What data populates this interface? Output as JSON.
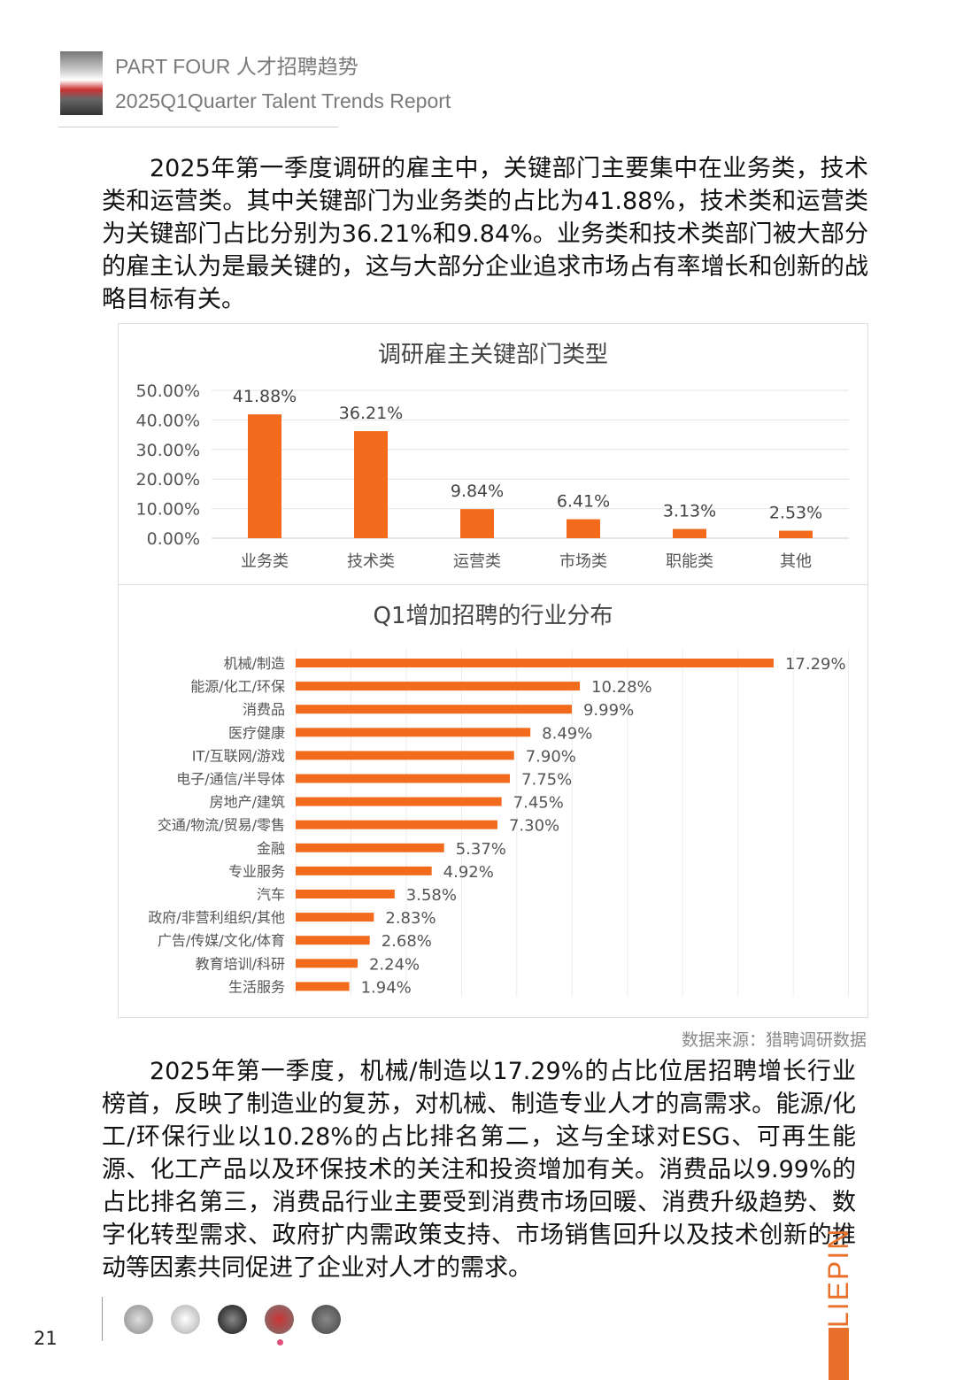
{
  "header": {
    "line1": "PART FOUR 人才招聘趋势",
    "line2": "2025Q1Quarter Talent Trends Report"
  },
  "paragraph1": "2025年第一季度调研的雇主中，关键部门主要集中在业务类，技术类和运营类。其中关键部门为业务类的占比为41.88%，技术类和运营类为关键部门占比分别为36.21%和9.84%。业务类和技术类部门被大部分的雇主认为是最关键的，这与大部分企业追求市场占有率增长和创新的战略目标有关。",
  "chart_data": [
    {
      "type": "bar",
      "title": "调研雇主关键部门类型",
      "categories": [
        "业务类",
        "技术类",
        "运营类",
        "市场类",
        "职能类",
        "其他"
      ],
      "values": [
        41.88,
        36.21,
        9.84,
        6.41,
        3.13,
        2.53
      ],
      "labels": [
        "41.88%",
        "36.21%",
        "9.84%",
        "6.41%",
        "3.13%",
        "2.53%"
      ],
      "ylim": [
        0,
        50
      ],
      "yticks": [
        "0.00%",
        "10.00%",
        "20.00%",
        "30.00%",
        "40.00%",
        "50.00%"
      ],
      "color": "#f26b1d",
      "grid": true
    },
    {
      "type": "bar",
      "orientation": "horizontal",
      "title": "Q1增加招聘的行业分布",
      "categories": [
        "机械/制造",
        "能源/化工/环保",
        "消费品",
        "医疗健康",
        "IT/互联网/游戏",
        "电子/通信/半导体",
        "房地产/建筑",
        "交通/物流/贸易/零售",
        "金融",
        "专业服务",
        "汽车",
        "政府/非营利组织/其他",
        "广告/传媒/文化/体育",
        "教育培训/科研",
        "生活服务"
      ],
      "values": [
        17.29,
        10.28,
        9.99,
        8.49,
        7.9,
        7.75,
        7.45,
        7.3,
        5.37,
        4.92,
        3.58,
        2.83,
        2.68,
        2.24,
        1.94
      ],
      "labels": [
        "17.29%",
        "10.28%",
        "9.99%",
        "8.49%",
        "7.90%",
        "7.75%",
        "7.45%",
        "7.30%",
        "5.37%",
        "4.92%",
        "3.58%",
        "2.83%",
        "2.68%",
        "2.24%",
        "1.94%"
      ],
      "color": "#f26b1d",
      "grid": true
    }
  ],
  "source": "数据来源：猎聘调研数据",
  "paragraph2": "2025年第一季度，机械/制造以17.29%的占比位居招聘增长行业榜首，反映了制造业的复苏，对机械、制造专业人才的高需求。能源/化工/环保行业以10.28%的占比排名第二，这与全球对ESG、可再生能源、化工产品以及环保技术的关注和投资增加有关。消费品以9.99%的占比排名第三，消费品行业主要受到消费市场回暖、消费升级趋势、数字化转型需求、政府扩内需政策支持、市场销售回升以及技术创新的推动等因素共同促进了企业对人才的需求。",
  "footer": {
    "page_number": "21",
    "brand": "LIEPIN"
  }
}
